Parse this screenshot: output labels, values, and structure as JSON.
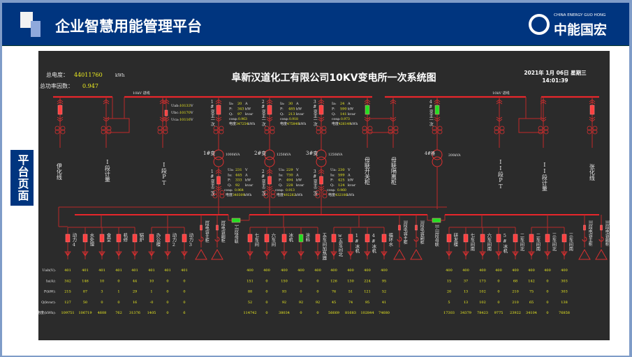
{
  "header": {
    "title": "企业智慧用能管理平台",
    "logo_en": "CHINA ENERGY GUO HONG",
    "logo_cn": "中能国宏"
  },
  "sidebar": {
    "label": "平台页面"
  },
  "summary": {
    "total_energy_label": "总电度：",
    "total_energy": "44011760",
    "total_energy_unit": "kWh",
    "pf_label": "总功率因数：",
    "pf": "0.947"
  },
  "diagram": {
    "title": "阜新汉道化工有限公司10KV变电所一次系统图",
    "date": "2021年 1月 06日 星期三",
    "time": "14:01:39",
    "bus_labels": [
      "10kV 进线",
      "10kV 进线"
    ],
    "incoming_voltage": [
      {
        "label": "Uab:",
        "value": "10133",
        "unit": "V"
      },
      {
        "label": "Ubc:",
        "value": "10170",
        "unit": "V"
      },
      {
        "label": "Uca:",
        "value": "10116",
        "unit": "V"
      }
    ],
    "field_labels": {
      "ia": "Ia:",
      "ua": "Ua:",
      "p": "P:",
      "q": "Q:",
      "cos": "cosφ:",
      "energy": "电度",
      "u_a": "A",
      "u_v": "V",
      "u_kw": "kW",
      "u_kvar": "kvar",
      "u_kwh": "kWh"
    },
    "colors": {
      "bus": "#e8262b",
      "closed": "#ff4040",
      "open": "#22dd22",
      "value": "#f0f020",
      "background": "#2b2b2b"
    },
    "top_feeders": [
      {
        "label": "伊化线",
        "switch": "closed"
      },
      {
        "label": "I段计量"
      },
      {
        "label": "I段PT"
      },
      {
        "label": "母联开关柜",
        "switch": "open"
      },
      {
        "label": "母联隔离柜"
      },
      {
        "label": "II段PT"
      },
      {
        "label": "II段计量"
      },
      {
        "label": "张化线",
        "switch": "closed"
      }
    ],
    "transformers": [
      {
        "name": "1#变",
        "capacity": "1000kVA",
        "primary_label": "1#变主一次",
        "secondary_label": "1#变主二次",
        "hv": {
          "ia": "20",
          "p": "343",
          "q": "97",
          "cos": "0.963",
          "energy": "347254"
        },
        "lv": {
          "ua": "231",
          "ia": "445",
          "p": "333",
          "q": "92",
          "cos": "0.964",
          "energy": "340309"
        }
      },
      {
        "name": "2#变",
        "capacity": "1250kVA",
        "primary_label": "2#变主一次",
        "secondary_label": "2#变主二次",
        "hv": {
          "ia": "30",
          "p": "485",
          "q": "213",
          "cos": "0.918",
          "energy": "475840"
        },
        "lv": {
          "ua": "229",
          "ia": "730",
          "p": "494",
          "q": "228",
          "cos": "0.913",
          "energy": "492282"
        }
      },
      {
        "name": "3#变",
        "capacity": "1250kVA",
        "primary_label": "3#变主一次",
        "secondary_label": "3#变主二次",
        "hv": {
          "ia": "24",
          "p": "590",
          "q": "141",
          "cos": "0.973",
          "energy": "426149"
        },
        "lv": {
          "ua": "230",
          "ia": "599",
          "p": "425",
          "q": "124",
          "cos": "0.960",
          "energy": "432106"
        }
      },
      {
        "name": "4#器",
        "capacity": "200kVA",
        "primary_label": "4#变主一次"
      }
    ],
    "row_labels": [
      "Uab(V):",
      "Ia(A):",
      "P(kW):",
      "Q(kvar):",
      "电度(kWh):"
    ],
    "ties": [
      {
        "label": "I-II段母联",
        "switch": "open"
      },
      {
        "label": "II-III段母联",
        "switch": "open"
      }
    ],
    "capacitors": [
      "I段电容主柜",
      "I段电容副柜",
      "II段电容主柜",
      "II段电容副柜",
      "III段电容主柜",
      "III段电容副柜"
    ],
    "feeders": [
      {
        "label": "动力4",
        "switch": "closed",
        "uab": "401",
        "ia": "342",
        "p": "215",
        "q": "127",
        "energy": "109751"
      },
      {
        "label": "水处理",
        "switch": "closed",
        "uab": "401",
        "ia": "146",
        "p": "87",
        "q": "50",
        "energy": "106719"
      },
      {
        "label": "食堂",
        "switch": "closed",
        "uab": "401",
        "ia": "10",
        "p": "3",
        "q": "0",
        "energy": "4608"
      },
      {
        "label": "机修",
        "switch": "closed",
        "uab": "401",
        "ia": "0",
        "p": "1",
        "q": "0",
        "energy": "762"
      },
      {
        "label": "锅炉",
        "switch": "closed",
        "uab": "401",
        "ia": "44",
        "p": "29",
        "q": "16",
        "energy": "31376"
      },
      {
        "label": "办公楼",
        "switch": "closed",
        "uab": "401",
        "ia": "10",
        "p": "1",
        "q": "-0",
        "energy": "1405"
      },
      {
        "label": "动力2",
        "switch": "closed",
        "uab": "401",
        "ia": "0",
        "p": "0",
        "q": "0",
        "energy": "0"
      },
      {
        "label": "动力3",
        "switch": "closed",
        "uab": "401",
        "ia": "0",
        "p": "0",
        "q": "0",
        "energy": "6"
      },
      {
        "label": "七车间",
        "switch": "closed",
        "uab": "400",
        "ia": "151",
        "p": "88",
        "q": "52",
        "energy": "114742"
      },
      {
        "label": "六车间",
        "switch": "closed",
        "uab": "400",
        "ia": "0",
        "p": "0",
        "q": "0",
        "energy": "0"
      },
      {
        "label": "冰机",
        "switch": "closed",
        "uab": "400",
        "ia": "150",
        "p": "93",
        "q": "92",
        "energy": "38034"
      },
      {
        "label": "涂料",
        "switch": "open",
        "uab": "400",
        "ia": "0",
        "p": "0",
        "q": "92",
        "energy": "0"
      },
      {
        "label": "五车间加热器",
        "switch": "closed",
        "uab": "400",
        "ia": "0",
        "p": "0",
        "q": "92",
        "energy": "0"
      },
      {
        "label": "w五车间北",
        "switch": "closed",
        "uab": "400",
        "ia": "126",
        "p": "76",
        "q": "45",
        "energy": "56669"
      },
      {
        "label": "1#冰机",
        "switch": "closed",
        "uab": "400",
        "ia": "130",
        "p": "51",
        "q": "74",
        "energy": "81683"
      },
      {
        "label": "4#冰机",
        "switch": "closed",
        "uab": "400",
        "ia": "224",
        "p": "121",
        "q": "95",
        "energy": "102844"
      },
      {
        "label": "循环水",
        "switch": "closed",
        "uab": "400",
        "ia": "95",
        "p": "52",
        "q": "41",
        "energy": "74680"
      },
      {
        "label": "研发楼",
        "switch": "closed",
        "uab": "400",
        "ia": "15",
        "p": "20",
        "q": "5",
        "energy": "17303"
      },
      {
        "label": "七车间南",
        "switch": "closed",
        "uab": "400",
        "ia": "37",
        "p": "13",
        "q": "13",
        "energy": "34379"
      },
      {
        "label": "六车间南",
        "switch": "closed",
        "uab": "400",
        "ia": "173",
        "p": "102",
        "q": "102",
        "energy": "78423"
      },
      {
        "label": "5#冰机",
        "switch": "closed",
        "uab": "400",
        "ia": "0",
        "p": "0",
        "q": "0",
        "energy": "9775"
      },
      {
        "label": "二车间北",
        "switch": "closed",
        "uab": "400",
        "ia": "68",
        "p": "210",
        "q": "210",
        "energy": "23922"
      },
      {
        "label": "二车间南",
        "switch": "closed",
        "uab": "400",
        "ia": "142",
        "p": "75",
        "q": "65",
        "energy": "34104"
      },
      {
        "label": "三车间北",
        "switch": "closed",
        "uab": "400",
        "ia": "0",
        "p": "0",
        "q": "0",
        "energy": "0"
      },
      {
        "label": "三车间南",
        "switch": "closed",
        "uab": "400",
        "ia": "303",
        "p": "303",
        "q": "138",
        "energy": "76858"
      }
    ]
  }
}
